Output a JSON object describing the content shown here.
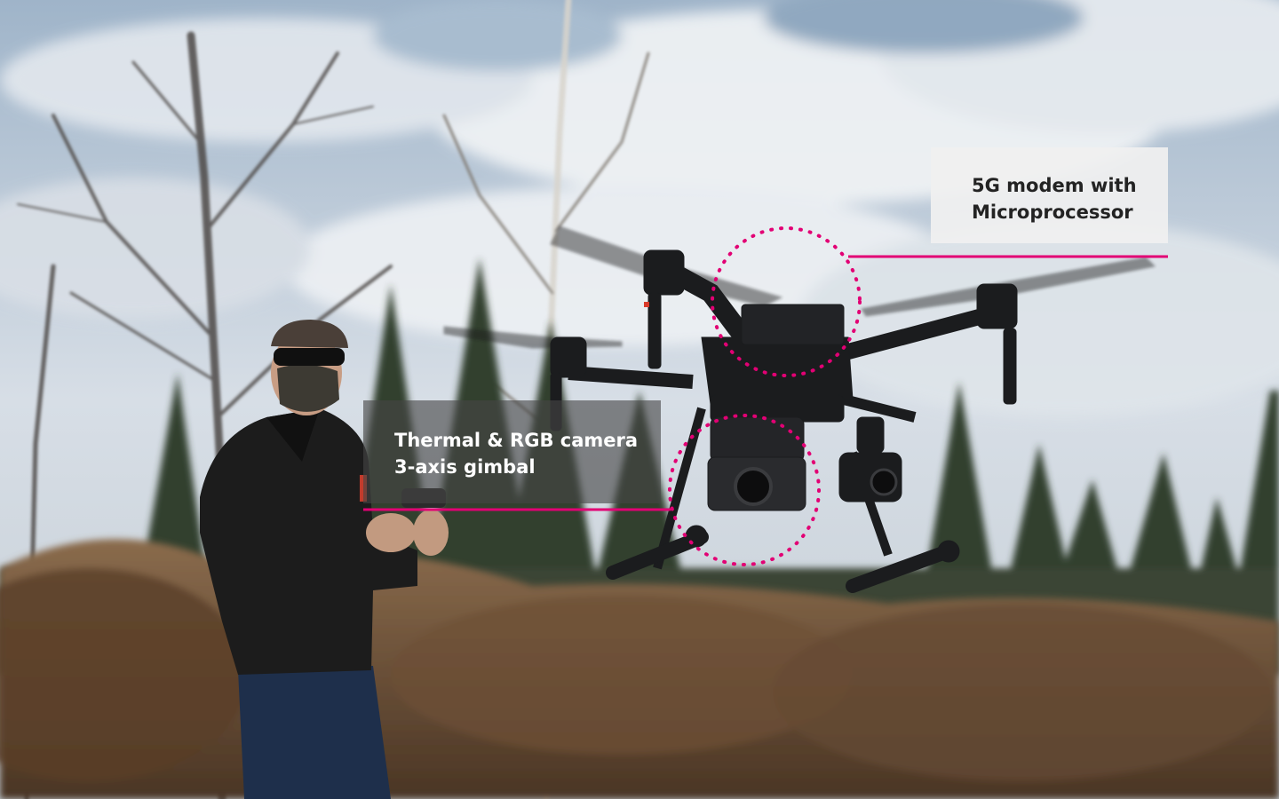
{
  "annotations": {
    "modem": {
      "line1": "5G modem with",
      "line2": "Microprocessor"
    },
    "camera": {
      "line1": "Thermal & RGB camera",
      "line2": "3-axis gimbal"
    }
  },
  "colors": {
    "accent": "#e20074",
    "sky": "#c9d6e3",
    "cloud": "#eef1f4",
    "forest": "#3c4a36",
    "brush": "#7a5a3c",
    "drone": "#1b1c1e"
  },
  "scene": {
    "subjects": [
      "person-with-remote-controller",
      "quadcopter-drone",
      "trees",
      "sky"
    ]
  }
}
